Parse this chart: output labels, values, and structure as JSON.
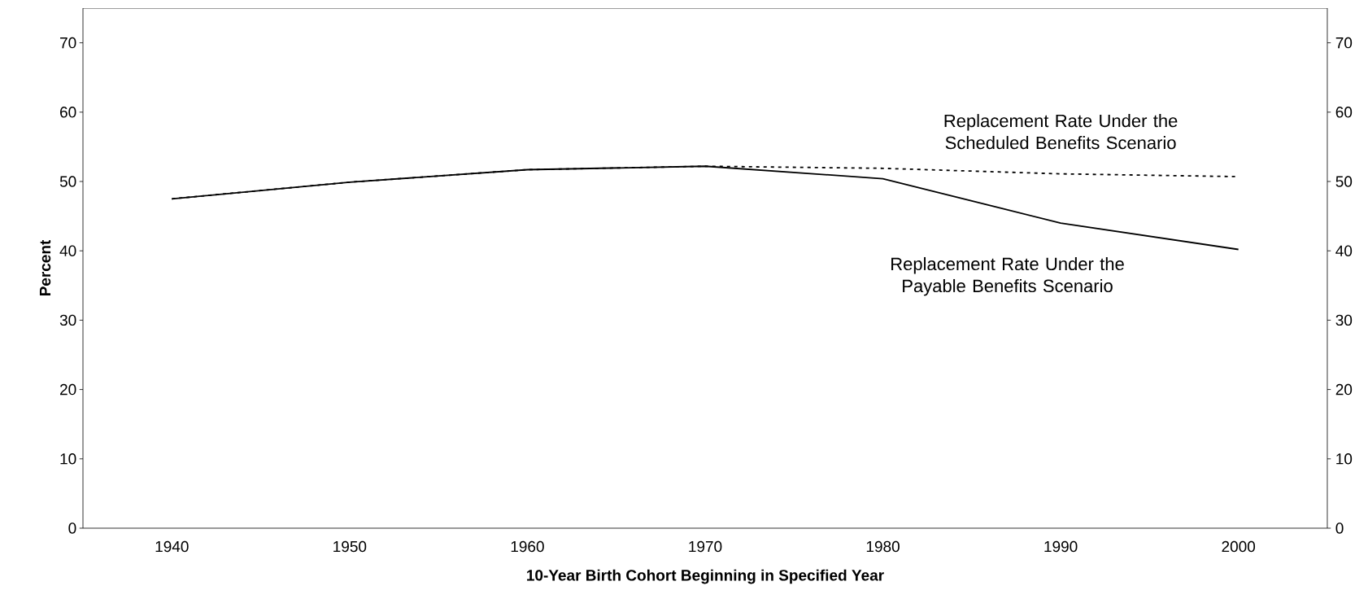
{
  "chart_data": {
    "type": "line",
    "xlabel": "10-Year Birth Cohort Beginning in Specified Year",
    "ylabel": "Percent",
    "categories": [
      "1940",
      "1950",
      "1960",
      "1970",
      "1980",
      "1990",
      "2000"
    ],
    "series": [
      {
        "name": "Replacement Rate Under the Scheduled Benefits Scenario",
        "color": "#000000",
        "line_style": "dotted",
        "values": [
          47.5,
          49.9,
          51.7,
          52.2,
          51.9,
          51.1,
          50.7
        ]
      },
      {
        "name": "Replacement Rate Under the Payable Benefits Scenario",
        "color": "#000000",
        "line_style": "solid",
        "values": [
          47.5,
          49.9,
          51.7,
          52.2,
          50.4,
          44.0,
          40.2
        ]
      }
    ],
    "ylim": [
      0,
      75
    ],
    "yticks": [
      0,
      10,
      20,
      30,
      40,
      50,
      60,
      70
    ],
    "y2lim": [
      0,
      75
    ],
    "y2ticks": [
      0,
      10,
      20,
      30,
      40,
      50,
      60,
      70
    ],
    "grid": false,
    "legend": false,
    "marker": "none"
  }
}
